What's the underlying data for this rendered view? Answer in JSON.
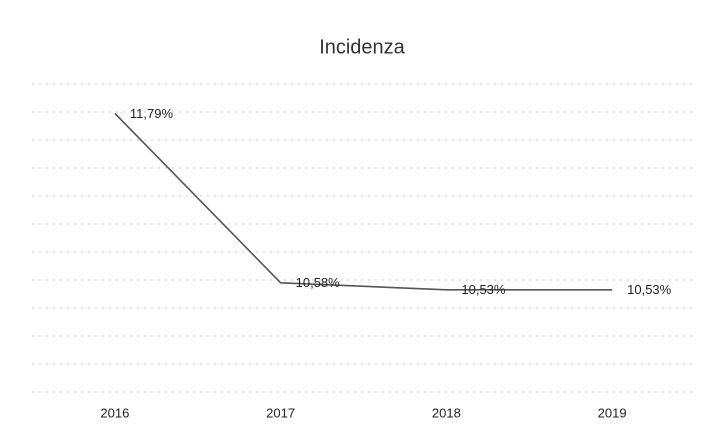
{
  "chart_data": {
    "type": "line",
    "title": "Incidenza",
    "categories": [
      "2016",
      "2017",
      "2018",
      "2019"
    ],
    "series": [
      {
        "name": "Incidenza",
        "color": "#555555",
        "values": [
          11.79,
          10.58,
          10.53,
          10.53
        ],
        "value_labels": [
          "11,79%",
          "10,58%",
          "10,53%",
          "10,53%"
        ]
      }
    ],
    "ylim": [
      9.8,
      12.0
    ],
    "yticks": [
      9.8,
      10,
      10.2,
      10.4,
      10.6,
      10.8,
      11,
      11.2,
      11.4,
      11.6,
      11.8,
      12
    ],
    "grid": true
  }
}
